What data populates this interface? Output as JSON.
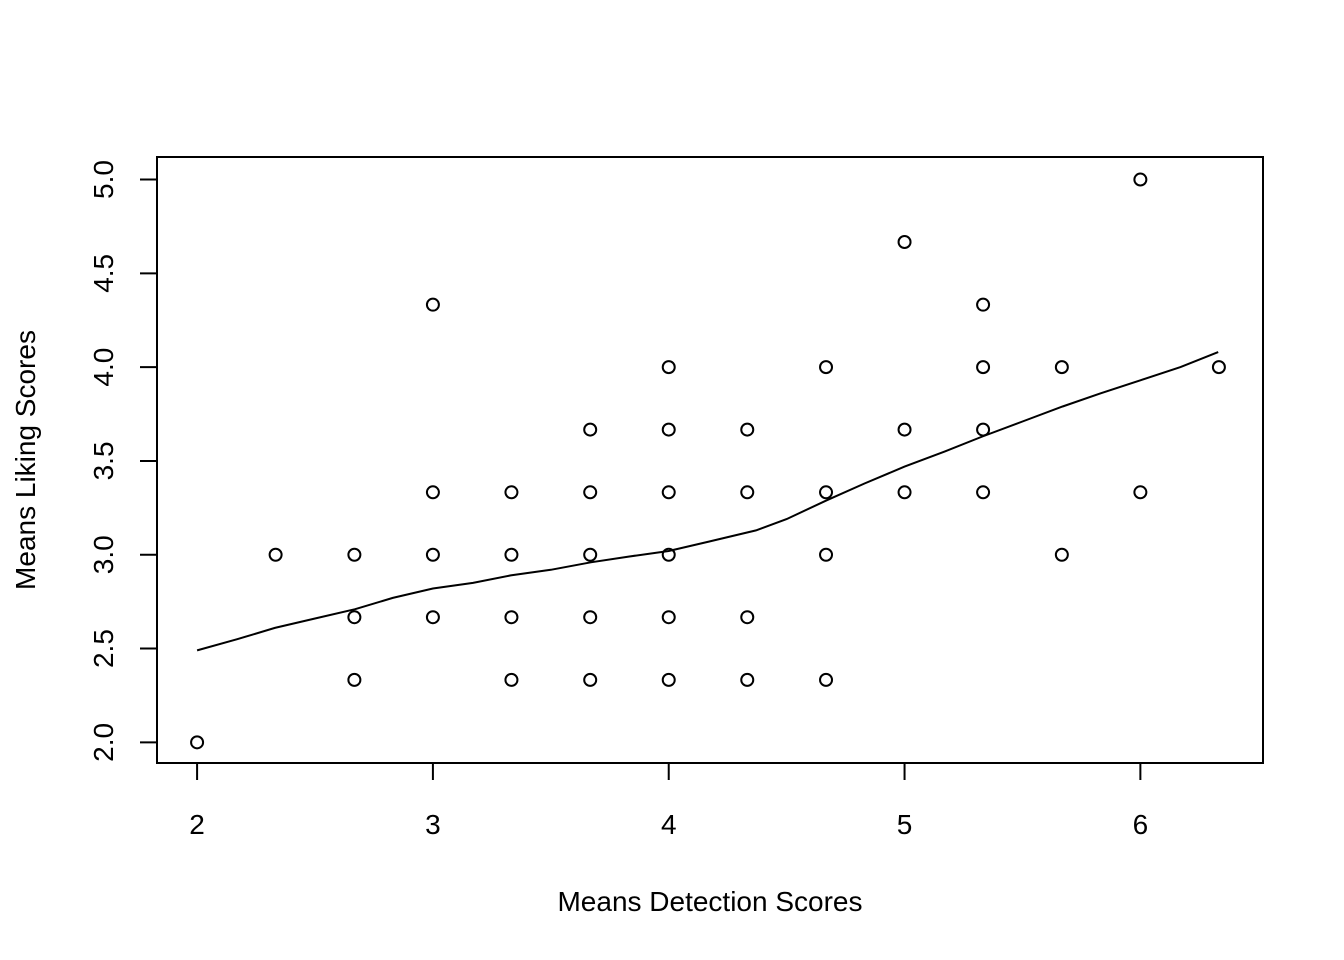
{
  "chart_data": {
    "type": "scatter",
    "title": "",
    "xlabel": "Means Detection Scores",
    "ylabel": "Means Liking Scores",
    "xlim": [
      1.83,
      6.52
    ],
    "ylim": [
      1.89,
      5.12
    ],
    "x_ticks": [
      "2",
      "3",
      "4",
      "5",
      "6"
    ],
    "y_ticks": [
      "2.0",
      "2.5",
      "3.0",
      "3.5",
      "4.0",
      "4.5",
      "5.0"
    ],
    "grid": false,
    "legend": "none",
    "series": [
      {
        "points": [
          [
            2.0,
            2.0
          ],
          [
            2.333,
            3.0
          ],
          [
            2.667,
            3.0
          ],
          [
            2.667,
            2.667
          ],
          [
            2.667,
            2.333
          ],
          [
            3.0,
            4.333
          ],
          [
            3.0,
            3.333
          ],
          [
            3.0,
            3.0
          ],
          [
            3.0,
            2.667
          ],
          [
            3.333,
            3.333
          ],
          [
            3.333,
            3.0
          ],
          [
            3.333,
            2.667
          ],
          [
            3.333,
            2.333
          ],
          [
            3.667,
            3.667
          ],
          [
            3.667,
            3.333
          ],
          [
            3.667,
            3.0
          ],
          [
            3.667,
            2.667
          ],
          [
            3.667,
            2.333
          ],
          [
            4.0,
            4.0
          ],
          [
            4.0,
            3.667
          ],
          [
            4.0,
            3.333
          ],
          [
            4.0,
            3.0
          ],
          [
            4.0,
            2.667
          ],
          [
            4.0,
            2.333
          ],
          [
            4.333,
            3.667
          ],
          [
            4.333,
            3.333
          ],
          [
            4.333,
            2.667
          ],
          [
            4.333,
            2.333
          ],
          [
            4.667,
            4.0
          ],
          [
            4.667,
            3.333
          ],
          [
            4.667,
            3.0
          ],
          [
            4.667,
            2.333
          ],
          [
            5.0,
            4.667
          ],
          [
            5.0,
            3.667
          ],
          [
            5.0,
            3.333
          ],
          [
            5.333,
            4.333
          ],
          [
            5.333,
            4.0
          ],
          [
            5.333,
            3.667
          ],
          [
            5.333,
            3.333
          ],
          [
            5.667,
            4.0
          ],
          [
            5.667,
            3.0
          ],
          [
            6.0,
            5.0
          ],
          [
            6.0,
            3.333
          ],
          [
            6.333,
            4.0
          ]
        ]
      }
    ],
    "smooth_line": [
      [
        2.0,
        2.49
      ],
      [
        2.17,
        2.55
      ],
      [
        2.33,
        2.61
      ],
      [
        2.5,
        2.66
      ],
      [
        2.67,
        2.71
      ],
      [
        2.83,
        2.77
      ],
      [
        3.0,
        2.82
      ],
      [
        3.17,
        2.85
      ],
      [
        3.33,
        2.89
      ],
      [
        3.5,
        2.92
      ],
      [
        3.67,
        2.96
      ],
      [
        3.83,
        2.99
      ],
      [
        4.0,
        3.02
      ],
      [
        4.17,
        3.07
      ],
      [
        4.37,
        3.13
      ],
      [
        4.5,
        3.19
      ],
      [
        4.67,
        3.29
      ],
      [
        4.83,
        3.38
      ],
      [
        5.0,
        3.47
      ],
      [
        5.17,
        3.55
      ],
      [
        5.33,
        3.63
      ],
      [
        5.5,
        3.71
      ],
      [
        5.67,
        3.79
      ],
      [
        5.83,
        3.86
      ],
      [
        6.0,
        3.93
      ],
      [
        6.17,
        4.0
      ],
      [
        6.33,
        4.08
      ]
    ]
  }
}
